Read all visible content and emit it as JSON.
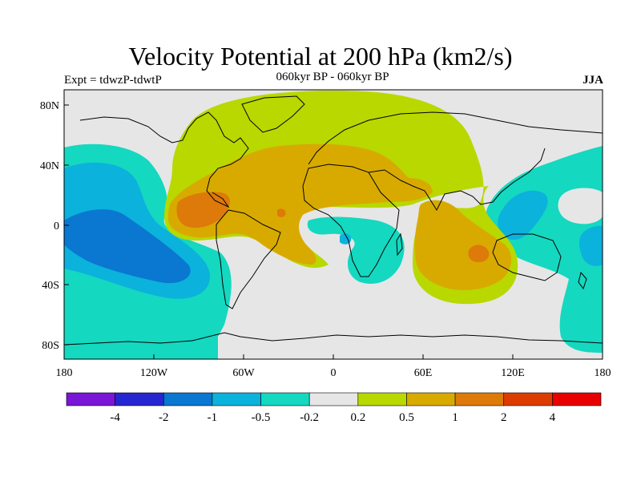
{
  "figure": {
    "title": "Velocity Potential at 200 hPa (km2/s)",
    "left_label": "Expt = tdwzP-tdwtP",
    "center_label": "060kyr BP - 060kyr BP",
    "right_label": "JJA"
  },
  "axes": {
    "lat_ticks": [
      "80N",
      "40N",
      "0",
      "40S",
      "80S"
    ],
    "lon_ticks": [
      "180",
      "120W",
      "60W",
      "0",
      "60E",
      "120E",
      "180"
    ]
  },
  "colorbar": {
    "colors": [
      "#7a16d6",
      "#2626d1",
      "#0a77d0",
      "#0bb2dc",
      "#14d8c0",
      "#e6e6e6",
      "#b8d800",
      "#d8aa00",
      "#dd7a0a",
      "#dc3c00",
      "#e80000"
    ],
    "labels": [
      "-4",
      "-2",
      "-1",
      "-0.5",
      "-0.2",
      "0.2",
      "0.5",
      "1",
      "2",
      "4"
    ]
  },
  "palette": {
    "neutral": "#e6e6e6",
    "weak_pos": "#b8d800",
    "mid_pos": "#d8aa00",
    "strong_pos": "#dd7a0a",
    "vstrong_pos": "#dc3c00",
    "weak_neg": "#14d8c0",
    "mid_neg": "#0bb2dc",
    "strong_neg": "#0a77d0"
  }
}
